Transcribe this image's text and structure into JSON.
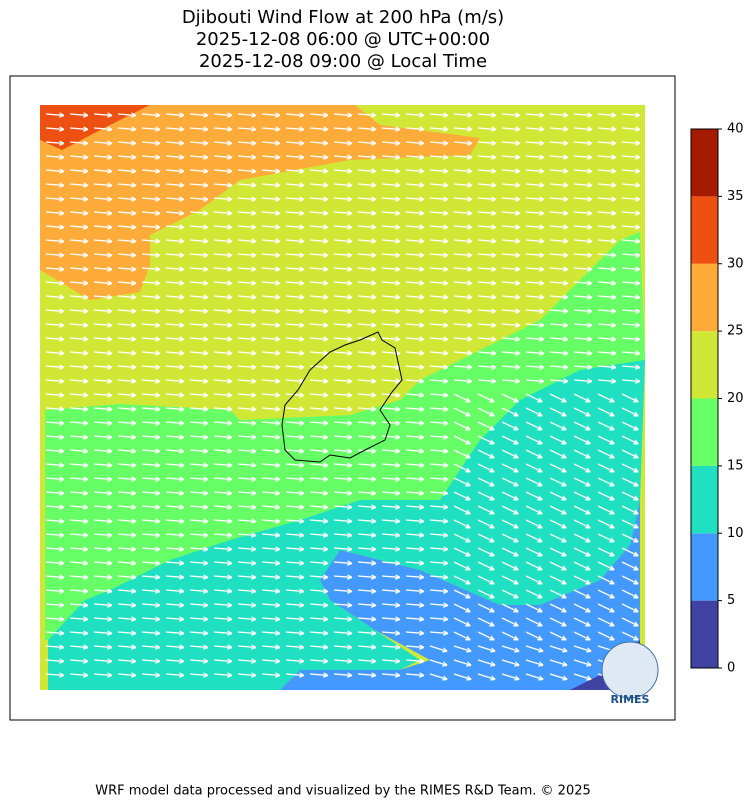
{
  "title": [
    "Djibouti Wind Flow at 200 hPa (m/s)",
    "2025-12-08 06:00 @ UTC+00:00",
    "2025-12-08 09:00 @ Local Time"
  ],
  "colorbar": {
    "levels": [
      0,
      5,
      10,
      15,
      20,
      25,
      30,
      35,
      40
    ],
    "colors": [
      "#4043a3",
      "#4499ff",
      "#1fe0c0",
      "#66ff66",
      "#d0e835",
      "#ffab3a",
      "#ee5012",
      "#a51a00"
    ],
    "ticks": [
      0,
      5,
      10,
      15,
      20,
      25,
      30,
      35,
      40
    ]
  },
  "logo": "RIMES",
  "footer": "WRF model data processed and visualized by the RIMES R&D Team. © 2025"
}
